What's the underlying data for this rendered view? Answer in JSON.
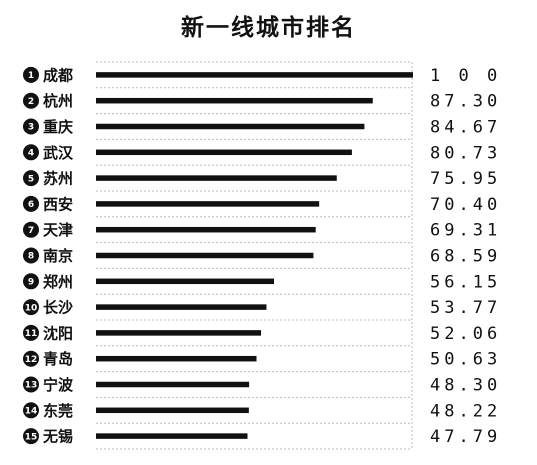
{
  "chart_data": {
    "type": "bar",
    "orientation": "horizontal",
    "title": "新一线城市排名",
    "categories": [
      "成都",
      "杭州",
      "重庆",
      "武汉",
      "苏州",
      "西安",
      "天津",
      "南京",
      "郑州",
      "长沙",
      "沈阳",
      "青岛",
      "宁波",
      "东莞",
      "无锡"
    ],
    "ranks": [
      "1",
      "2",
      "3",
      "4",
      "5",
      "6",
      "7",
      "8",
      "9",
      "10",
      "11",
      "12",
      "13",
      "14",
      "15"
    ],
    "values": [
      100,
      87.3,
      84.67,
      80.73,
      75.95,
      70.4,
      69.31,
      68.59,
      56.15,
      53.77,
      52.06,
      50.63,
      48.3,
      48.22,
      47.79
    ],
    "value_labels": [
      "1 0 0",
      "87.30",
      "84.67",
      "80.73",
      "75.95",
      "70.40",
      "69.31",
      "68.59",
      "56.15",
      "53.77",
      "52.06",
      "50.63",
      "48.30",
      "48.22",
      "47.79"
    ],
    "xlim": [
      0,
      100
    ],
    "grid": "dashed row separators",
    "colors": {
      "bar": "#111111",
      "rank_badge": "#111111",
      "grid": "#bbbbbb"
    }
  }
}
